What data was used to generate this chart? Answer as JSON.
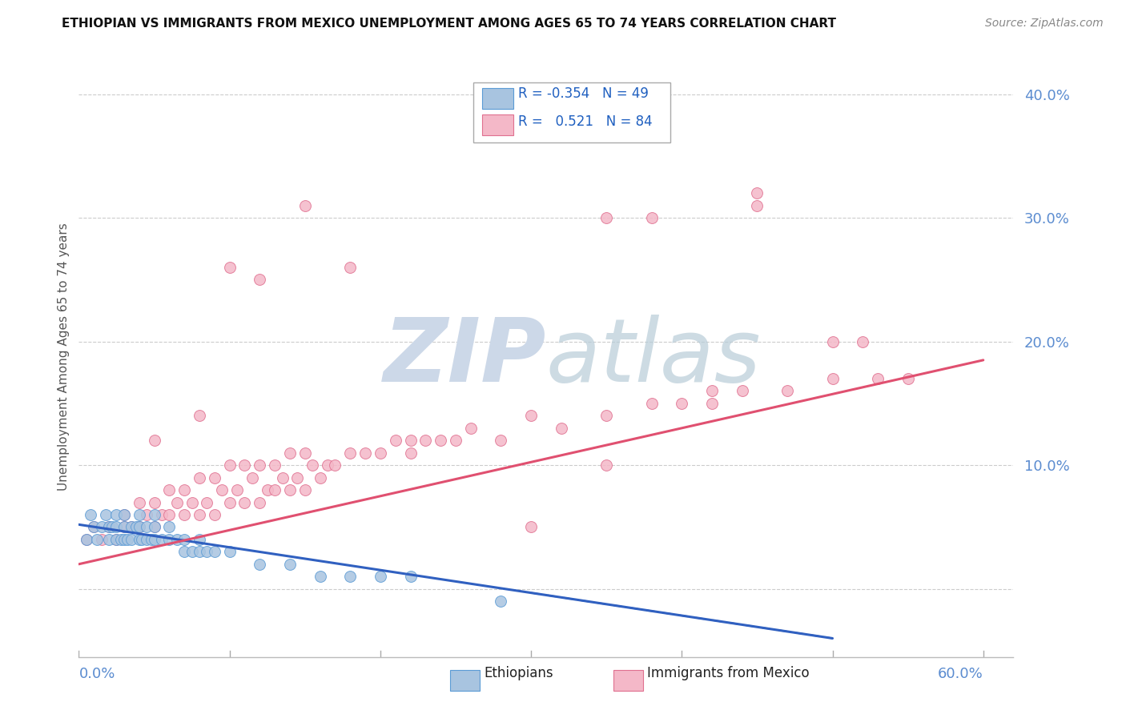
{
  "title": "ETHIOPIAN VS IMMIGRANTS FROM MEXICO UNEMPLOYMENT AMONG AGES 65 TO 74 YEARS CORRELATION CHART",
  "source": "Source: ZipAtlas.com",
  "ylabel": "Unemployment Among Ages 65 to 74 years",
  "xlim": [
    0.0,
    0.62
  ],
  "ylim": [
    -0.055,
    0.43
  ],
  "ytick_values": [
    0.0,
    0.1,
    0.2,
    0.3,
    0.4
  ],
  "ytick_labels": [
    "",
    "10.0%",
    "20.0%",
    "30.0%",
    "40.0%"
  ],
  "ethiopians_color": "#a8c4e0",
  "mexico_color": "#f4b8c8",
  "ethiopians_edge_color": "#5b9bd5",
  "mexico_edge_color": "#e07090",
  "ethiopians_line_color": "#3060c0",
  "mexico_line_color": "#e05070",
  "background_color": "#ffffff",
  "watermark_color": "#ccd8e8",
  "ethiopians_scatter_x": [
    0.005,
    0.008,
    0.01,
    0.012,
    0.015,
    0.018,
    0.02,
    0.02,
    0.022,
    0.025,
    0.025,
    0.025,
    0.028,
    0.03,
    0.03,
    0.03,
    0.032,
    0.035,
    0.035,
    0.038,
    0.04,
    0.04,
    0.04,
    0.042,
    0.045,
    0.045,
    0.048,
    0.05,
    0.05,
    0.05,
    0.055,
    0.06,
    0.06,
    0.065,
    0.07,
    0.07,
    0.075,
    0.08,
    0.08,
    0.085,
    0.09,
    0.1,
    0.12,
    0.14,
    0.16,
    0.18,
    0.2,
    0.22,
    0.28
  ],
  "ethiopians_scatter_y": [
    0.04,
    0.06,
    0.05,
    0.04,
    0.05,
    0.06,
    0.04,
    0.05,
    0.05,
    0.04,
    0.05,
    0.06,
    0.04,
    0.04,
    0.05,
    0.06,
    0.04,
    0.04,
    0.05,
    0.05,
    0.04,
    0.05,
    0.06,
    0.04,
    0.04,
    0.05,
    0.04,
    0.04,
    0.05,
    0.06,
    0.04,
    0.04,
    0.05,
    0.04,
    0.03,
    0.04,
    0.03,
    0.03,
    0.04,
    0.03,
    0.03,
    0.03,
    0.02,
    0.02,
    0.01,
    0.01,
    0.01,
    0.01,
    -0.01
  ],
  "mexico_scatter_x": [
    0.005,
    0.01,
    0.015,
    0.02,
    0.025,
    0.03,
    0.03,
    0.035,
    0.04,
    0.04,
    0.045,
    0.05,
    0.05,
    0.055,
    0.06,
    0.06,
    0.065,
    0.07,
    0.07,
    0.075,
    0.08,
    0.08,
    0.085,
    0.09,
    0.09,
    0.095,
    0.1,
    0.1,
    0.105,
    0.11,
    0.11,
    0.115,
    0.12,
    0.12,
    0.125,
    0.13,
    0.13,
    0.135,
    0.14,
    0.14,
    0.145,
    0.15,
    0.15,
    0.155,
    0.16,
    0.165,
    0.17,
    0.18,
    0.19,
    0.2,
    0.21,
    0.22,
    0.23,
    0.24,
    0.25,
    0.26,
    0.28,
    0.3,
    0.32,
    0.35,
    0.38,
    0.4,
    0.42,
    0.44,
    0.47,
    0.5,
    0.53,
    0.55,
    0.05,
    0.08,
    0.1,
    0.12,
    0.15,
    0.18,
    0.22,
    0.3,
    0.35,
    0.42,
    0.5,
    0.35,
    0.45,
    0.52,
    0.38,
    0.45
  ],
  "mexico_scatter_y": [
    0.04,
    0.05,
    0.04,
    0.05,
    0.04,
    0.05,
    0.06,
    0.05,
    0.05,
    0.07,
    0.06,
    0.05,
    0.07,
    0.06,
    0.06,
    0.08,
    0.07,
    0.06,
    0.08,
    0.07,
    0.06,
    0.09,
    0.07,
    0.06,
    0.09,
    0.08,
    0.07,
    0.1,
    0.08,
    0.07,
    0.1,
    0.09,
    0.07,
    0.1,
    0.08,
    0.08,
    0.1,
    0.09,
    0.08,
    0.11,
    0.09,
    0.08,
    0.11,
    0.1,
    0.09,
    0.1,
    0.1,
    0.11,
    0.11,
    0.11,
    0.12,
    0.12,
    0.12,
    0.12,
    0.12,
    0.13,
    0.12,
    0.14,
    0.13,
    0.14,
    0.15,
    0.15,
    0.16,
    0.16,
    0.16,
    0.17,
    0.17,
    0.17,
    0.12,
    0.14,
    0.26,
    0.25,
    0.31,
    0.26,
    0.11,
    0.05,
    0.1,
    0.15,
    0.2,
    0.3,
    0.31,
    0.2,
    0.3,
    0.32
  ],
  "eth_line_x0": 0.0,
  "eth_line_x1": 0.5,
  "eth_line_y0": 0.052,
  "eth_line_y1": -0.04,
  "mex_line_x0": 0.0,
  "mex_line_x1": 0.6,
  "mex_line_y0": 0.02,
  "mex_line_y1": 0.185
}
